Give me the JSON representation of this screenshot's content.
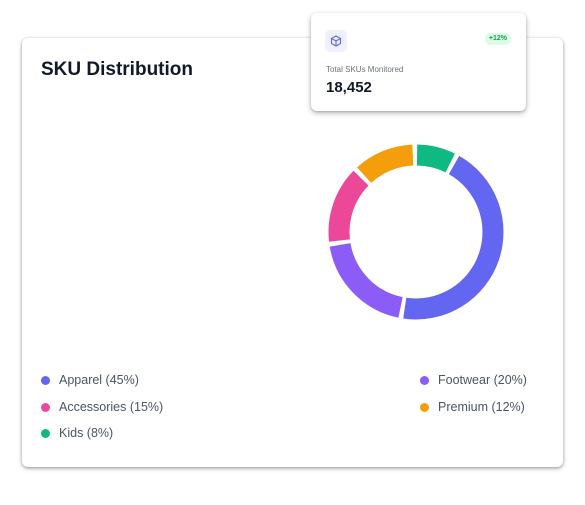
{
  "card": {
    "title": "SKU Distribution"
  },
  "chart_data": {
    "type": "pie",
    "variant": "donut",
    "title": "SKU Distribution",
    "categories": [
      "Apparel",
      "Footwear",
      "Accessories",
      "Premium",
      "Kids"
    ],
    "values": [
      45,
      20,
      15,
      12,
      8
    ],
    "colors": [
      "#6366f1",
      "#8b5cf6",
      "#ec4899",
      "#f59e0b",
      "#10b981"
    ],
    "legend": [
      {
        "label": "Apparel (45%)",
        "color": "#6366f1"
      },
      {
        "label": "Footwear (20%)",
        "color": "#8b5cf6"
      },
      {
        "label": "Accessories (15%)",
        "color": "#ec4899"
      },
      {
        "label": "Premium (12%)",
        "color": "#f59e0b"
      },
      {
        "label": "Kids (8%)",
        "color": "#10b981"
      }
    ],
    "legend_position": "bottom"
  },
  "stat_card": {
    "icon": "cube-icon",
    "badge": "+12%",
    "label": "Total SKUs Monitored",
    "value": "18,452",
    "badge_color": "#16a34a",
    "icon_color": "#6366f1"
  }
}
